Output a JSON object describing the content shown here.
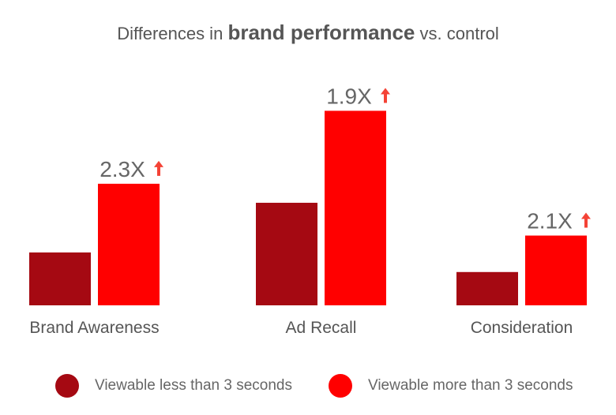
{
  "title": {
    "prefix": "Differences in",
    "emphasis": "brand performance",
    "suffix": "vs. control"
  },
  "colors": {
    "less_than_3": "#a50912",
    "more_than_3": "#ff0000",
    "multiplier_text": "#666666",
    "arrow": "#f44336",
    "category_text": "#555555"
  },
  "chart_data": {
    "type": "bar",
    "categories": [
      "Brand Awareness",
      "Ad Recall",
      "Consideration"
    ],
    "series": [
      {
        "name": "Viewable less than 3 seconds",
        "values": [
          1.0,
          1.94,
          0.63
        ]
      },
      {
        "name": "Viewable more than 3 seconds",
        "values": [
          2.3,
          3.68,
          1.32
        ]
      }
    ],
    "annotations": [
      "2.3X",
      "1.9X",
      "2.1X"
    ],
    "annotation_icon": "arrow-up-icon",
    "ylim": [
      0,
      4
    ]
  }
}
